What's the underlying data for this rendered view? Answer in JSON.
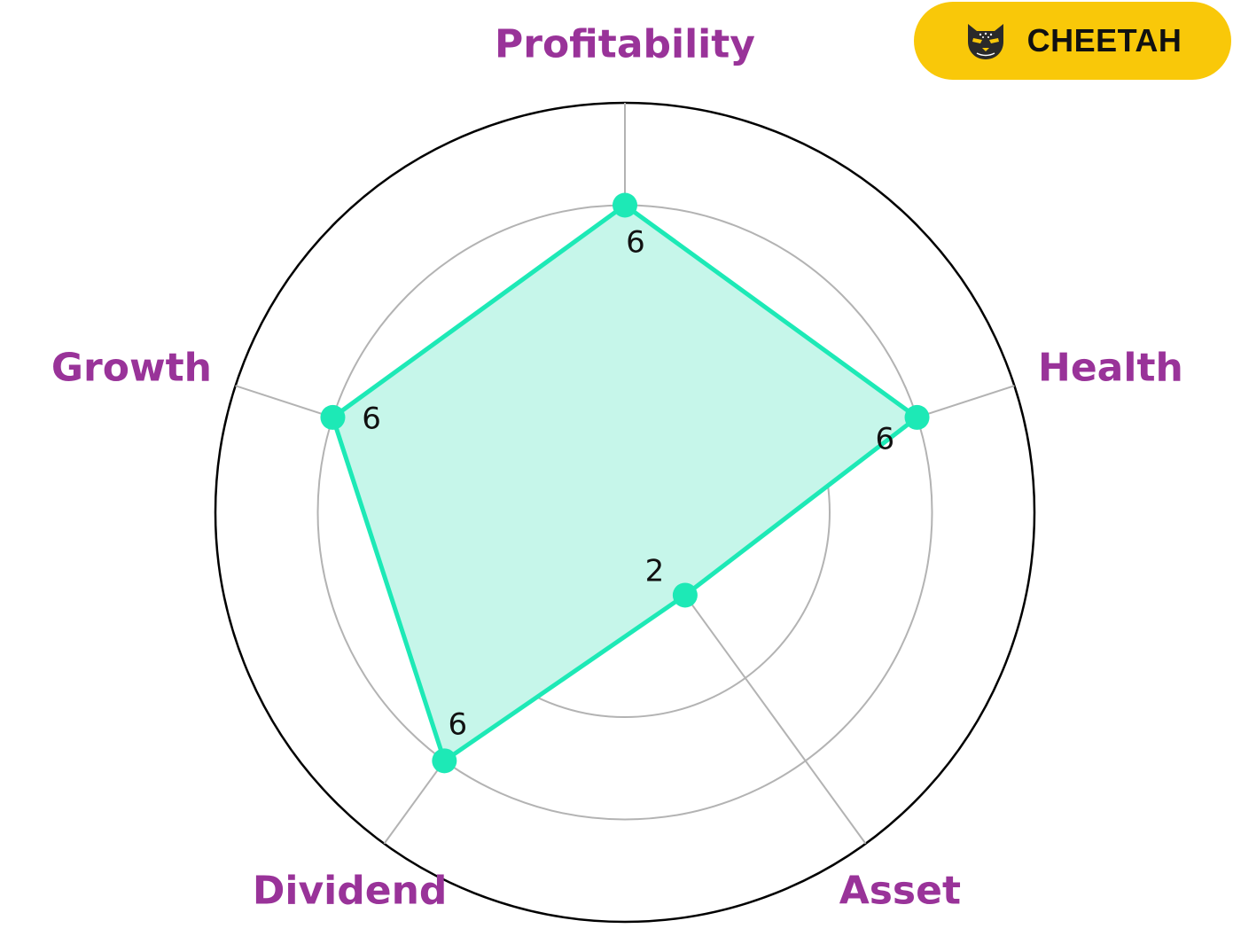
{
  "brand": {
    "name": "CHEETAH",
    "icon": "cheetah-icon",
    "background": "#F9C809"
  },
  "chart_data": {
    "type": "radar",
    "categories": [
      "Profitability",
      "Health",
      "Asset",
      "Dividend",
      "Growth"
    ],
    "values": [
      6,
      6,
      2,
      6,
      6
    ],
    "value_labels": [
      "6",
      "6",
      "2",
      "6",
      "6"
    ],
    "rmax": 8,
    "grid_rings": [
      2,
      4,
      6,
      8
    ],
    "grid": true,
    "colors": {
      "line": "#1DE9B6",
      "fill": "#C6F6EA",
      "label": "#993399",
      "grid": "#B3B3B3",
      "outer": "#000000"
    }
  }
}
